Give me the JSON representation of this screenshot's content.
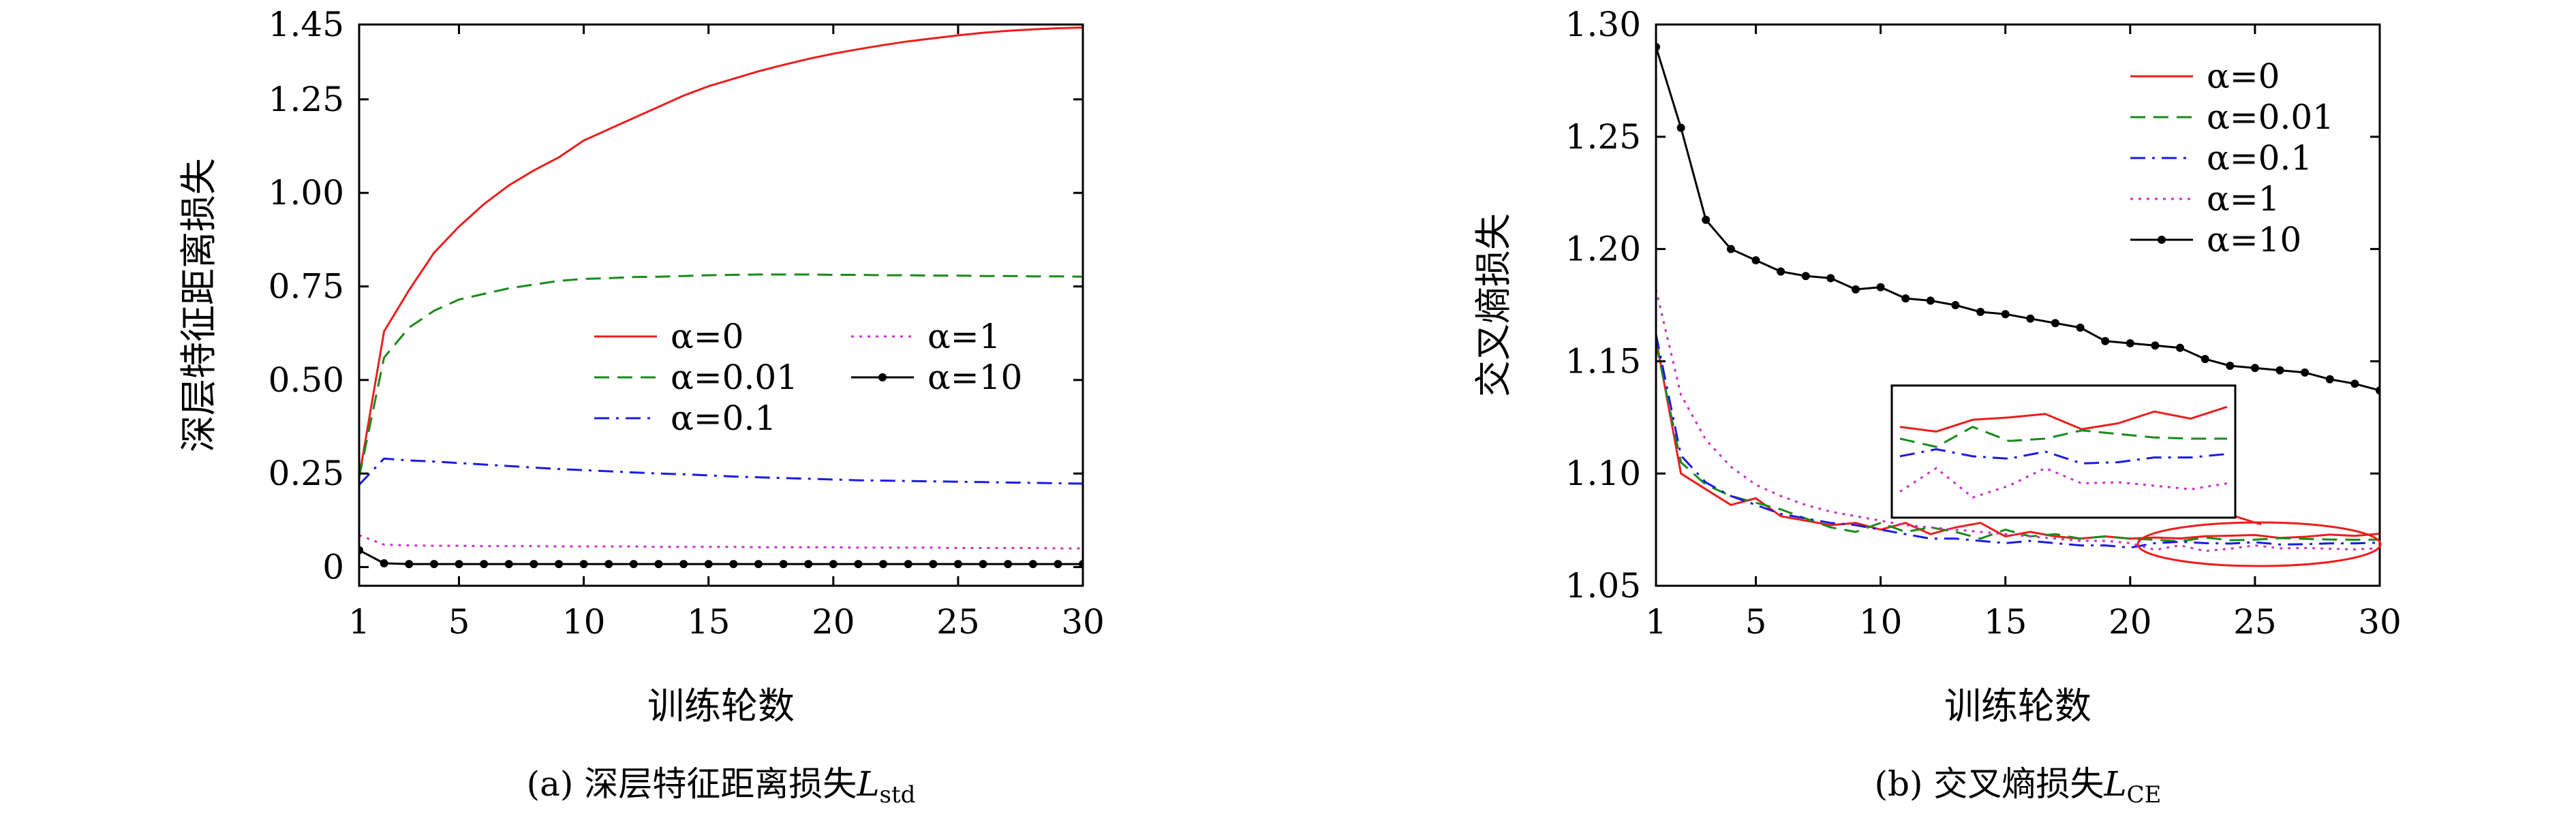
{
  "chart_data": [
    {
      "type": "line",
      "caption": "(a) 深层特征距离损失",
      "caption_symbol": "L",
      "caption_subscript": "std",
      "xlabel": "训练轮数",
      "ylabel": "深层特征距离损失",
      "xlim": [
        1,
        30
      ],
      "ylim": [
        -0.05,
        1.45
      ],
      "xticks": [
        1,
        5,
        10,
        15,
        20,
        25,
        30
      ],
      "yticks": [
        {
          "value": 0,
          "label": "0"
        },
        {
          "value": 0.25,
          "label": "0.25"
        },
        {
          "value": 0.5,
          "label": "0.50"
        },
        {
          "value": 0.75,
          "label": "0.75"
        },
        {
          "value": 1.0,
          "label": "1.00"
        },
        {
          "value": 1.25,
          "label": "1.25"
        },
        {
          "value": 1.45,
          "label": "1.45"
        }
      ],
      "grid": false,
      "legend": "center-right, two columns",
      "x": [
        1,
        2,
        3,
        4,
        5,
        6,
        7,
        8,
        9,
        10,
        11,
        12,
        13,
        14,
        15,
        16,
        17,
        18,
        19,
        20,
        21,
        22,
        23,
        24,
        25,
        26,
        27,
        28,
        29,
        30
      ],
      "series": [
        {
          "name": "α=0",
          "color": "#ee1c1c",
          "dash": "solid",
          "marker": false,
          "values": [
            0.24,
            0.63,
            0.74,
            0.84,
            0.91,
            0.97,
            1.02,
            1.06,
            1.095,
            1.14,
            1.17,
            1.2,
            1.23,
            1.26,
            1.285,
            1.305,
            1.325,
            1.342,
            1.358,
            1.372,
            1.384,
            1.395,
            1.405,
            1.413,
            1.421,
            1.428,
            1.433,
            1.437,
            1.44,
            1.442
          ]
        },
        {
          "name": "α=0.01",
          "color": "#1a8a1a",
          "dash": "dashed",
          "marker": false,
          "values": [
            0.24,
            0.56,
            0.64,
            0.685,
            0.715,
            0.73,
            0.745,
            0.755,
            0.765,
            0.77,
            0.772,
            0.775,
            0.776,
            0.778,
            0.78,
            0.781,
            0.782,
            0.782,
            0.782,
            0.781,
            0.781,
            0.78,
            0.78,
            0.779,
            0.779,
            0.778,
            0.778,
            0.777,
            0.777,
            0.776
          ]
        },
        {
          "name": "α=0.1",
          "color": "#1a1ae6",
          "dash": "dashdot",
          "marker": false,
          "values": [
            0.22,
            0.29,
            0.285,
            0.282,
            0.278,
            0.274,
            0.27,
            0.266,
            0.262,
            0.259,
            0.256,
            0.253,
            0.25,
            0.248,
            0.245,
            0.242,
            0.24,
            0.238,
            0.236,
            0.234,
            0.232,
            0.231,
            0.23,
            0.229,
            0.228,
            0.227,
            0.226,
            0.225,
            0.224,
            0.223
          ]
        },
        {
          "name": "α=1",
          "color": "#c832c8",
          "dash": "dotted",
          "marker": false,
          "values": [
            0.085,
            0.06,
            0.058,
            0.057,
            0.057,
            0.056,
            0.056,
            0.056,
            0.055,
            0.055,
            0.055,
            0.055,
            0.054,
            0.054,
            0.054,
            0.054,
            0.053,
            0.053,
            0.053,
            0.053,
            0.052,
            0.052,
            0.052,
            0.052,
            0.051,
            0.051,
            0.051,
            0.051,
            0.05,
            0.05
          ]
        },
        {
          "name": "α=10",
          "color": "#000000",
          "dash": "solid",
          "marker": true,
          "values": [
            0.045,
            0.01,
            0.008,
            0.008,
            0.008,
            0.008,
            0.008,
            0.008,
            0.008,
            0.008,
            0.008,
            0.008,
            0.008,
            0.008,
            0.008,
            0.008,
            0.008,
            0.008,
            0.008,
            0.008,
            0.008,
            0.008,
            0.008,
            0.008,
            0.008,
            0.008,
            0.008,
            0.008,
            0.008,
            0.008
          ]
        }
      ]
    },
    {
      "type": "line",
      "caption": "(b) 交叉熵损失",
      "caption_symbol": "L",
      "caption_subscript": "CE",
      "xlabel": "训练轮数",
      "ylabel": "交叉熵损失",
      "xlim": [
        1,
        30
      ],
      "ylim": [
        1.05,
        1.3
      ],
      "xticks": [
        1,
        5,
        10,
        15,
        20,
        25,
        30
      ],
      "yticks": [
        {
          "value": 1.05,
          "label": "1.05"
        },
        {
          "value": 1.1,
          "label": "1.10"
        },
        {
          "value": 1.15,
          "label": "1.15"
        },
        {
          "value": 1.2,
          "label": "1.20"
        },
        {
          "value": 1.25,
          "label": "1.25"
        },
        {
          "value": 1.3,
          "label": "1.30"
        }
      ],
      "grid": false,
      "legend": "top-right",
      "inset": "zoomed view of epochs 21–30 (circled)",
      "x": [
        1,
        2,
        3,
        4,
        5,
        6,
        7,
        8,
        9,
        10,
        11,
        12,
        13,
        14,
        15,
        16,
        17,
        18,
        19,
        20,
        21,
        22,
        23,
        24,
        25,
        26,
        27,
        28,
        29,
        30
      ],
      "series": [
        {
          "name": "α=0",
          "color": "#ee1c1c",
          "dash": "solid",
          "marker": false,
          "values": [
            1.16,
            1.1,
            1.093,
            1.086,
            1.089,
            1.081,
            1.079,
            1.077,
            1.078,
            1.075,
            1.078,
            1.073,
            1.076,
            1.078,
            1.072,
            1.074,
            1.072,
            1.071,
            1.072,
            1.071,
            1.0715,
            1.0711,
            1.0721,
            1.0723,
            1.0726,
            1.0713,
            1.0718,
            1.0728,
            1.0722,
            1.0732
          ]
        },
        {
          "name": "α=0.01",
          "color": "#1a8a1a",
          "dash": "dashed",
          "marker": false,
          "values": [
            1.158,
            1.105,
            1.095,
            1.09,
            1.087,
            1.084,
            1.08,
            1.076,
            1.074,
            1.078,
            1.074,
            1.076,
            1.074,
            1.071,
            1.075,
            1.072,
            1.073,
            1.071,
            1.072,
            1.071,
            1.0705,
            1.0698,
            1.0715,
            1.0703,
            1.0705,
            1.0712,
            1.0709,
            1.0706,
            1.0705,
            1.0705
          ]
        },
        {
          "name": "α=0.1",
          "color": "#1a1ae6",
          "dash": "dashdot",
          "marker": false,
          "values": [
            1.162,
            1.108,
            1.096,
            1.09,
            1.086,
            1.082,
            1.08,
            1.078,
            1.077,
            1.075,
            1.073,
            1.071,
            1.071,
            1.07,
            1.069,
            1.07,
            1.069,
            1.068,
            1.068,
            1.067,
            1.069,
            1.0696,
            1.069,
            1.0688,
            1.0694,
            1.0684,
            1.0685,
            1.0689,
            1.0689,
            1.0692
          ]
        },
        {
          "name": "α=1",
          "color": "#c832c8",
          "dash": "dotted",
          "marker": false,
          "values": [
            1.182,
            1.135,
            1.115,
            1.103,
            1.095,
            1.09,
            1.086,
            1.083,
            1.081,
            1.079,
            1.077,
            1.076,
            1.075,
            1.074,
            1.073,
            1.072,
            1.071,
            1.07,
            1.07,
            1.069,
            1.066,
            1.068,
            1.0655,
            1.0665,
            1.068,
            1.0667,
            1.0668,
            1.0665,
            1.0662,
            1.0667
          ]
        },
        {
          "name": "α=10",
          "color": "#000000",
          "dash": "solid",
          "marker": true,
          "values": [
            1.29,
            1.254,
            1.213,
            1.2,
            1.195,
            1.19,
            1.188,
            1.187,
            1.182,
            1.183,
            1.178,
            1.177,
            1.175,
            1.172,
            1.171,
            1.169,
            1.167,
            1.165,
            1.159,
            1.158,
            1.157,
            1.156,
            1.151,
            1.148,
            1.147,
            1.146,
            1.145,
            1.142,
            1.14,
            1.137
          ]
        }
      ]
    }
  ]
}
